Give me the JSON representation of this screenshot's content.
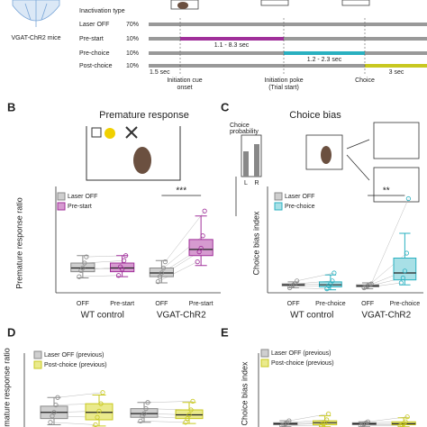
{
  "mouse_label": "VGAT-ChR2 mice",
  "heading": "Inactivation type",
  "rows": [
    {
      "label": "Laser OFF",
      "share": "70%"
    },
    {
      "label": "Pre-start",
      "share": "10%",
      "window": "1.1 - 8.3 sec"
    },
    {
      "label": "Pre-choice",
      "share": "10%",
      "window": "1.2 - 2.3 sec"
    },
    {
      "label": "Post-choice",
      "share": "10%",
      "window": "3 sec"
    }
  ],
  "events": {
    "delay": "1.5 sec",
    "cue": [
      "Initiation cue",
      "onset"
    ],
    "poke": [
      "Initiation poke",
      "(Trial start)"
    ],
    "choice": "Choice"
  },
  "schematic": {
    "label": [
      "Choice",
      "probability"
    ],
    "left": "L",
    "right": "R"
  },
  "chart_data": [
    {
      "type": "box",
      "panel": "B",
      "title": "Premature response",
      "ylabel": "Premature response ratio",
      "ylim": [
        0,
        0.8
      ],
      "categories": [
        "OFF",
        "Pre-start",
        "OFF",
        "Pre-start"
      ],
      "group_labels": [
        "WT control",
        "VGAT-ChR2"
      ],
      "annotation": "***",
      "series": [
        {
          "name": "Laser OFF",
          "color": "#8a8a8a",
          "fill": "#cfcfcf",
          "boxes": [
            {
              "min": 0.12,
              "q1": 0.17,
              "median": 0.2,
              "q3": 0.24,
              "max": 0.3,
              "points": [
                0.13,
                0.18,
                0.2,
                0.24,
                0.29
              ]
            },
            {
              "min": 0.08,
              "q1": 0.13,
              "median": 0.16,
              "q3": 0.2,
              "max": 0.26,
              "points": [
                0.09,
                0.13,
                0.16,
                0.2,
                0.25
              ]
            }
          ]
        },
        {
          "name": "Pre-start",
          "color": "#a0309a",
          "fill": "#d69ad0",
          "boxes": [
            {
              "min": 0.13,
              "q1": 0.17,
              "median": 0.2,
              "q3": 0.24,
              "max": 0.3,
              "points": [
                0.14,
                0.21,
                0.19,
                0.26,
                0.3
              ]
            },
            {
              "min": 0.22,
              "q1": 0.3,
              "median": 0.35,
              "q3": 0.43,
              "max": 0.62,
              "points": [
                0.25,
                0.33,
                0.36,
                0.46,
                0.66
              ]
            }
          ]
        }
      ]
    },
    {
      "type": "box",
      "panel": "C",
      "title": "Choice bias",
      "ylabel": "Choice bias index",
      "ylim": [
        0,
        1
      ],
      "categories": [
        "OFF",
        "Pre-choice",
        "OFF",
        "Pre-choice"
      ],
      "group_labels": [
        "WT control",
        "VGAT-ChR2"
      ],
      "annotation": "**",
      "series": [
        {
          "name": "Laser OFF",
          "color": "#8a8a8a",
          "fill": "#cfcfcf",
          "boxes": [
            {
              "min": 0.05,
              "q1": 0.07,
              "median": 0.08,
              "q3": 0.09,
              "max": 0.11,
              "points": [
                0.05,
                0.07,
                0.08,
                0.09,
                0.12
              ]
            },
            {
              "min": 0.04,
              "q1": 0.06,
              "median": 0.07,
              "q3": 0.08,
              "max": 0.1,
              "points": [
                0.05,
                0.06,
                0.07,
                0.08,
                0.09
              ]
            }
          ]
        },
        {
          "name": "Pre-choice",
          "color": "#2ab0c0",
          "fill": "#a8e0e6",
          "boxes": [
            {
              "min": 0.03,
              "q1": 0.06,
              "median": 0.08,
              "q3": 0.11,
              "max": 0.18,
              "points": [
                0.04,
                0.07,
                0.09,
                0.12,
                0.2
              ]
            },
            {
              "min": 0.08,
              "q1": 0.13,
              "median": 0.2,
              "q3": 0.35,
              "max": 0.6,
              "points": [
                0.1,
                0.15,
                0.22,
                0.4,
                0.95
              ]
            }
          ]
        }
      ]
    },
    {
      "type": "box",
      "panel": "D",
      "ylabel": "Premature response ratio",
      "ylim": [
        0,
        0.8
      ],
      "series": [
        {
          "name": "Laser OFF (previous)",
          "color": "#8a8a8a",
          "fill": "#cfcfcf",
          "boxes": [
            {
              "min": 0.28,
              "q1": 0.33,
              "median": 0.38,
              "q3": 0.43,
              "max": 0.5,
              "points": [
                0.3,
                0.35,
                0.38,
                0.44,
                0.5
              ]
            },
            {
              "min": 0.3,
              "q1": 0.34,
              "median": 0.37,
              "q3": 0.41,
              "max": 0.46,
              "points": [
                0.31,
                0.35,
                0.37,
                0.41,
                0.46
              ]
            }
          ]
        },
        {
          "name": "Post-choice (previous)",
          "color": "#c8c820",
          "fill": "#eaea8c",
          "boxes": [
            {
              "min": 0.27,
              "q1": 0.32,
              "median": 0.38,
              "q3": 0.45,
              "max": 0.52,
              "points": [
                0.28,
                0.34,
                0.39,
                0.45,
                0.54
              ]
            },
            {
              "min": 0.29,
              "q1": 0.33,
              "median": 0.36,
              "q3": 0.4,
              "max": 0.46,
              "points": [
                0.3,
                0.33,
                0.36,
                0.4,
                0.47
              ]
            }
          ]
        }
      ]
    },
    {
      "type": "box",
      "panel": "E",
      "ylabel": "Choice bias index",
      "ylim": [
        0,
        1
      ],
      "series": [
        {
          "name": "Laser OFF (previous)",
          "color": "#8a8a8a",
          "fill": "#cfcfcf",
          "boxes": [
            {
              "min": 0.33,
              "q1": 0.35,
              "median": 0.36,
              "q3": 0.37,
              "max": 0.39,
              "points": [
                0.34,
                0.35,
                0.36,
                0.37,
                0.39
              ]
            },
            {
              "min": 0.33,
              "q1": 0.35,
              "median": 0.36,
              "q3": 0.37,
              "max": 0.38,
              "points": [
                0.34,
                0.35,
                0.36,
                0.37,
                0.38
              ]
            }
          ]
        },
        {
          "name": "Post-choice (previous)",
          "color": "#c8c820",
          "fill": "#eaea8c",
          "boxes": [
            {
              "min": 0.33,
              "q1": 0.35,
              "median": 0.37,
              "q3": 0.39,
              "max": 0.44,
              "points": [
                0.34,
                0.36,
                0.37,
                0.4,
                0.46
              ]
            },
            {
              "min": 0.33,
              "q1": 0.35,
              "median": 0.36,
              "q3": 0.38,
              "max": 0.42,
              "points": [
                0.34,
                0.35,
                0.36,
                0.38,
                0.43
              ]
            }
          ]
        }
      ]
    }
  ]
}
